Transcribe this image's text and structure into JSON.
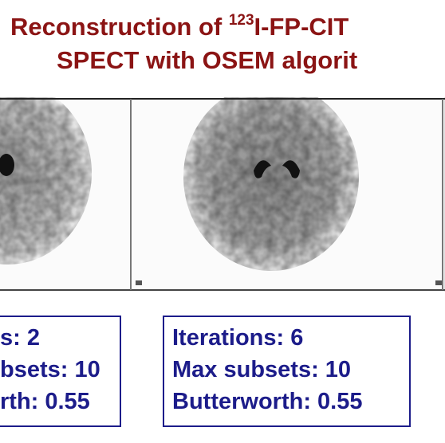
{
  "title": {
    "line1_before": "Reconstruction of ",
    "line1_sup": "123",
    "line1_after": "I-FP-CIT",
    "line2": "SPECT with OSEM algorit"
  },
  "boxes": [
    {
      "lines": [
        "s: 2",
        "bsets: 10",
        "rth: 0.55"
      ]
    },
    {
      "lines": [
        "Iterations: 6",
        "Max subsets: 10",
        "Butterworth: 0.55"
      ]
    }
  ]
}
